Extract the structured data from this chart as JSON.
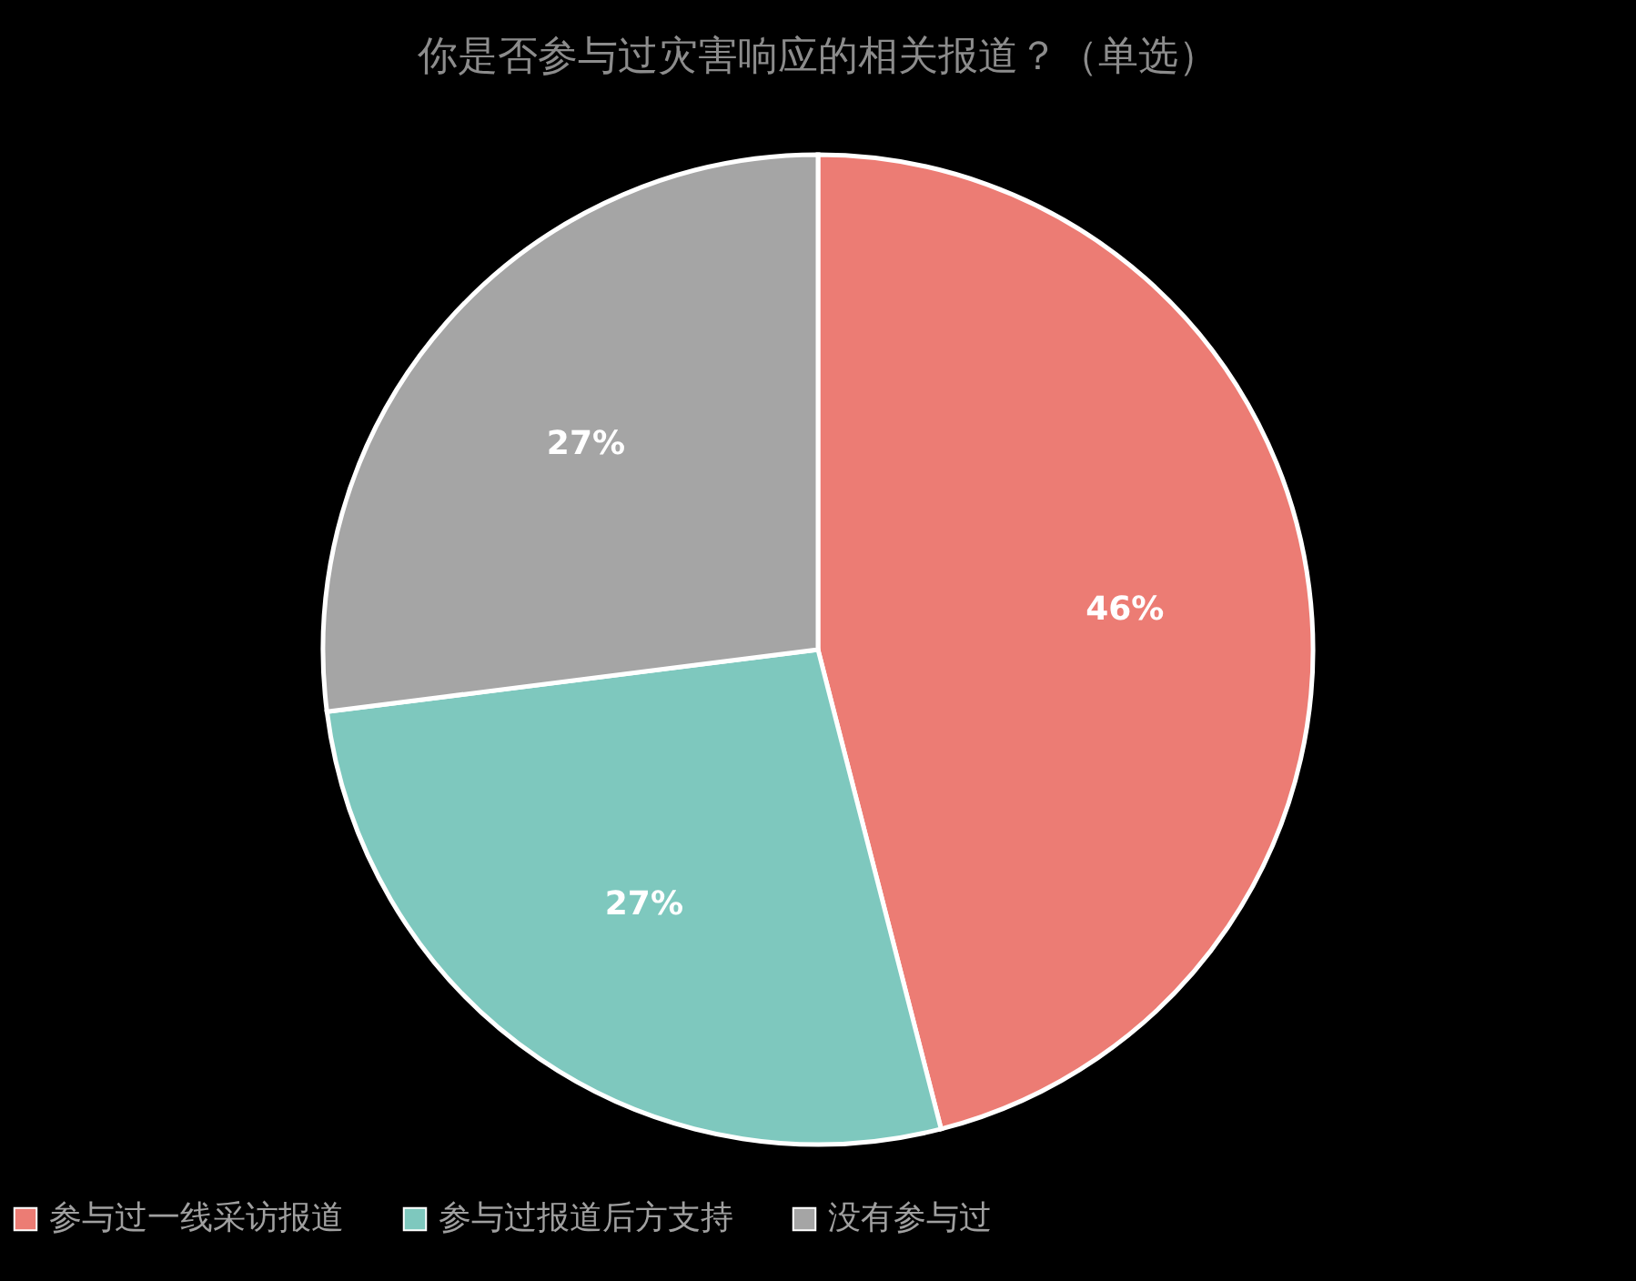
{
  "chart_data": {
    "type": "pie",
    "title": "你是否参与过灾害响应的相关报道？（单选）",
    "categories": [
      "参与过一线采访报道",
      "参与过报道后方支持",
      "没有参与过"
    ],
    "values": [
      46,
      27,
      27
    ],
    "value_labels": [
      "46%",
      "27%",
      "27%"
    ],
    "colors": [
      "#ec7c74",
      "#7ec8be",
      "#a5a5a5"
    ],
    "legend": "bottom"
  }
}
